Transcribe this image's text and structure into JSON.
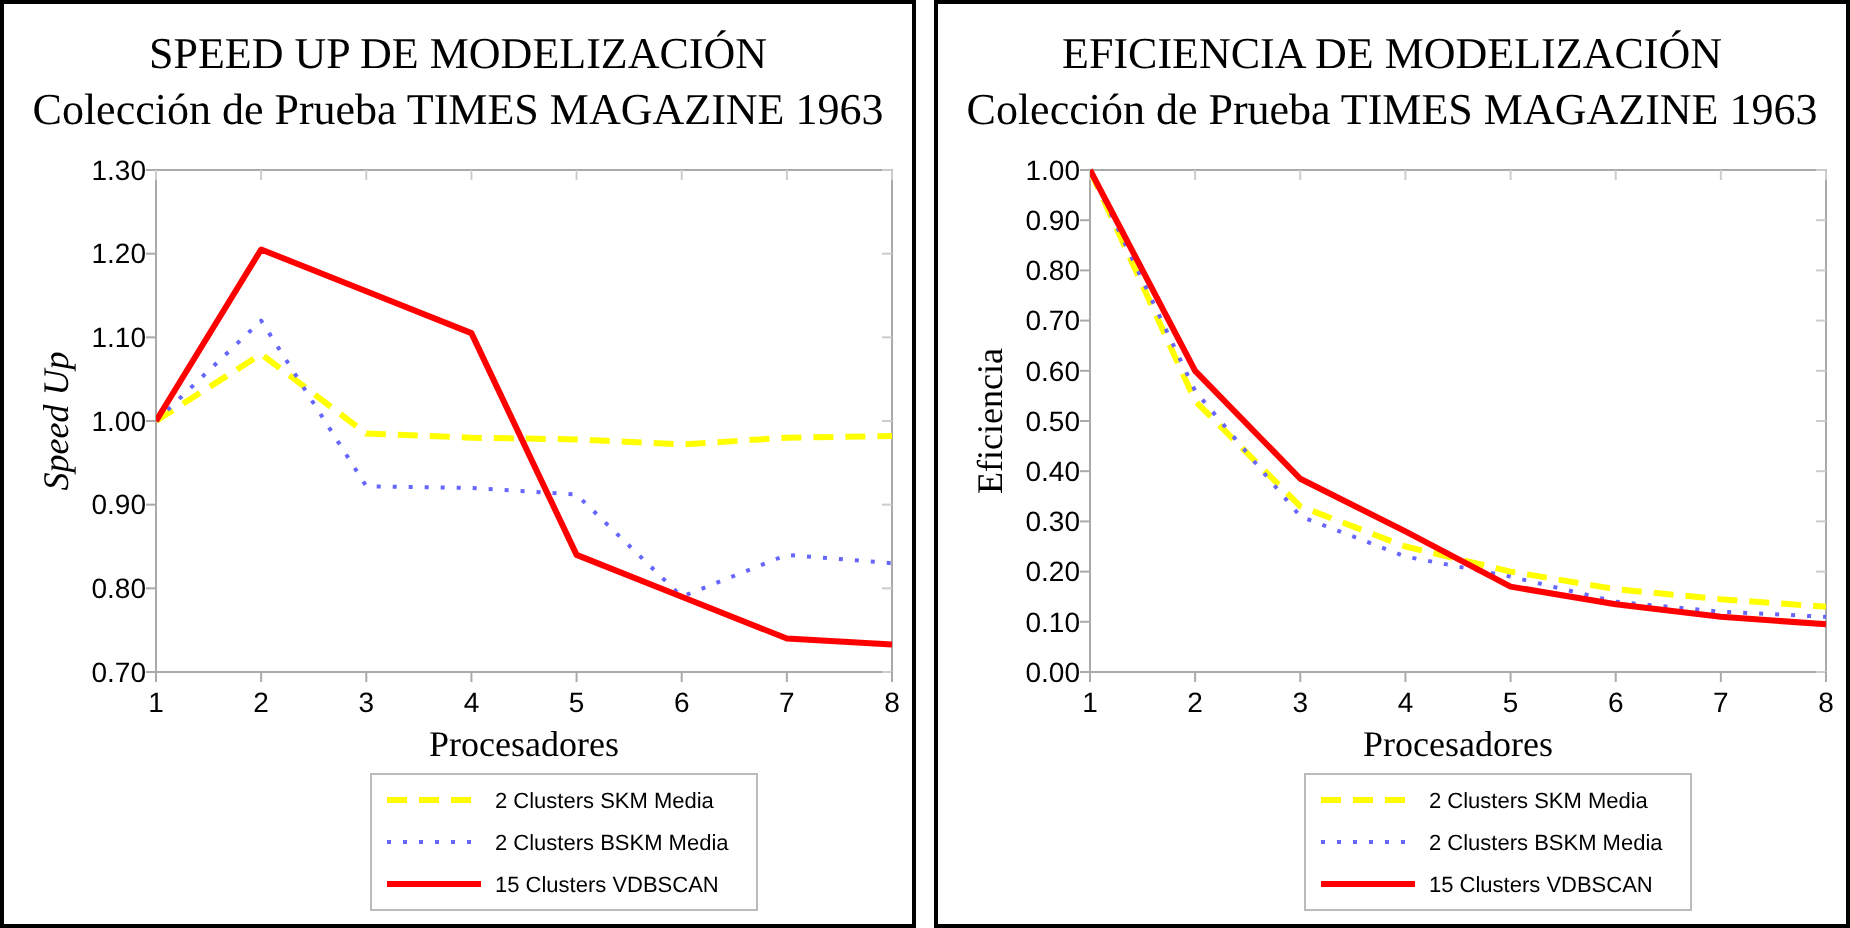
{
  "chart_data": [
    {
      "type": "line",
      "title": "SPEED UP DE MODELIZACIÓN",
      "subtitle": "Colección de Prueba TIMES MAGAZINE 1963",
      "xlabel": "Procesadores",
      "ylabel": "Speed Up",
      "x": [
        1,
        2,
        3,
        4,
        5,
        6,
        7,
        8
      ],
      "xlim": [
        1,
        8
      ],
      "xticks": [
        1,
        2,
        3,
        4,
        5,
        6,
        7,
        8
      ],
      "ylim": [
        0.7,
        1.3
      ],
      "yticks": [
        {
          "value": 0.7,
          "label": "0.70"
        },
        {
          "value": 0.8,
          "label": "0.80"
        },
        {
          "value": 0.9,
          "label": "0.90"
        },
        {
          "value": 1.0,
          "label": "1.00"
        },
        {
          "value": 1.1,
          "label": "1.10"
        },
        {
          "value": 1.2,
          "label": "1.20"
        },
        {
          "value": 1.3,
          "label": "1.30"
        }
      ],
      "grid": false,
      "legend": "bottom",
      "series": [
        {
          "name": "2 Clusters SKM Media",
          "color": "#ffff00",
          "line_style": "dashed",
          "values": [
            1.0,
            1.08,
            0.985,
            0.98,
            0.978,
            0.972,
            0.98,
            0.982
          ]
        },
        {
          "name": "2 Clusters BSKM Media",
          "color": "#6666ff",
          "line_style": "dotted",
          "values": [
            1.0,
            1.12,
            0.922,
            0.92,
            0.912,
            0.79,
            0.84,
            0.83
          ]
        },
        {
          "name": "15 Clusters VDBSCAN",
          "color": "#ff0000",
          "line_style": "solid",
          "values": [
            1.0,
            1.205,
            1.155,
            1.105,
            0.84,
            0.79,
            0.74,
            0.733
          ]
        }
      ]
    },
    {
      "type": "line",
      "title": "EFICIENCIA DE MODELIZACIÓN",
      "subtitle": "Colección de Prueba TIMES MAGAZINE 1963",
      "xlabel": "Procesadores",
      "ylabel": "Eficiencia",
      "x": [
        1,
        2,
        3,
        4,
        5,
        6,
        7,
        8
      ],
      "xlim": [
        1,
        8
      ],
      "xticks": [
        1,
        2,
        3,
        4,
        5,
        6,
        7,
        8
      ],
      "ylim": [
        0,
        1
      ],
      "yticks": [
        {
          "value": 0,
          "label": "0.00"
        },
        {
          "value": 0.1,
          "label": "0.10"
        },
        {
          "value": 0.2,
          "label": "0.20"
        },
        {
          "value": 0.3,
          "label": "0.30"
        },
        {
          "value": 0.4,
          "label": "0.40"
        },
        {
          "value": 0.5,
          "label": "0.50"
        },
        {
          "value": 0.6,
          "label": "0.60"
        },
        {
          "value": 0.7,
          "label": "0.70"
        },
        {
          "value": 0.8,
          "label": "0.80"
        },
        {
          "value": 0.9,
          "label": "0.90"
        },
        {
          "value": 1.0,
          "label": "1.00"
        }
      ],
      "grid": false,
      "legend": "bottom",
      "series": [
        {
          "name": "2 Clusters SKM Media",
          "color": "#ffff00",
          "line_style": "dashed",
          "values": [
            1.0,
            0.54,
            0.33,
            0.25,
            0.2,
            0.165,
            0.145,
            0.13
          ]
        },
        {
          "name": "2 Clusters BSKM Media",
          "color": "#6666ff",
          "line_style": "dotted",
          "values": [
            1.0,
            0.56,
            0.31,
            0.23,
            0.19,
            0.14,
            0.12,
            0.11
          ]
        },
        {
          "name": "15 Clusters VDBSCAN",
          "color": "#ff0000",
          "line_style": "solid",
          "values": [
            1.0,
            0.6,
            0.385,
            0.28,
            0.17,
            0.135,
            0.11,
            0.095
          ]
        }
      ]
    }
  ]
}
